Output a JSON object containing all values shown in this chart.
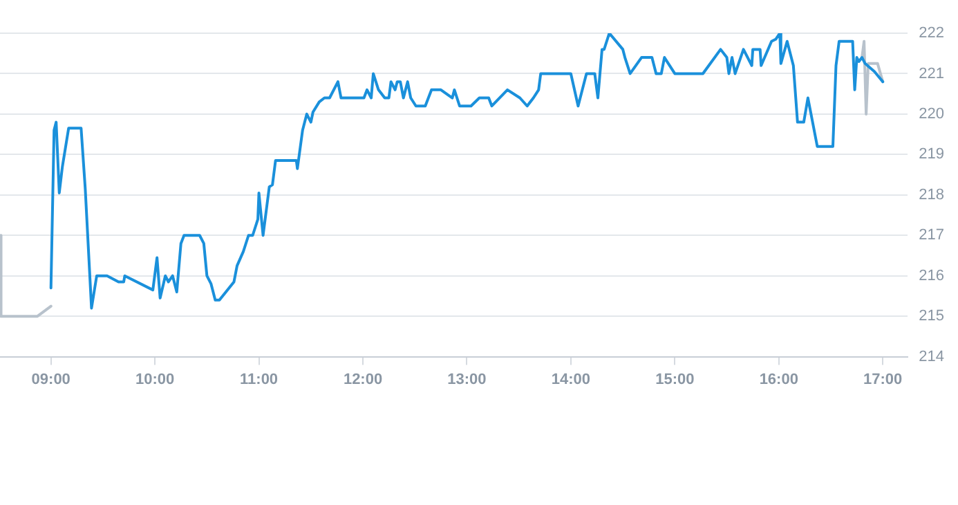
{
  "chart_data": {
    "type": "line",
    "xlim": [
      8.51,
      17.24
    ],
    "ylim": [
      214,
      222
    ],
    "xticks": [
      {
        "value": 9,
        "label": "09:00"
      },
      {
        "value": 10,
        "label": "10:00"
      },
      {
        "value": 11,
        "label": "11:00"
      },
      {
        "value": 12,
        "label": "12:00"
      },
      {
        "value": 13,
        "label": "13:00"
      },
      {
        "value": 14,
        "label": "14:00"
      },
      {
        "value": 15,
        "label": "15:00"
      },
      {
        "value": 16,
        "label": "16:00"
      },
      {
        "value": 17,
        "label": "17:00"
      }
    ],
    "yticks": [
      214,
      215,
      216,
      217,
      218,
      219,
      220,
      221,
      222
    ],
    "grid": "y",
    "marker": "none",
    "line_style": "solid",
    "legend": false,
    "series": [
      {
        "color": "#b8c2cc",
        "x": [
          8.51,
          8.52,
          8.87,
          9.0
        ],
        "values": [
          217.0,
          215.0,
          215.0,
          215.25
        ]
      },
      {
        "color": "#1a90db",
        "x": [
          9.0,
          9.03,
          9.05,
          9.08,
          9.11,
          9.17,
          9.29,
          9.33,
          9.39,
          9.44,
          9.54,
          9.65,
          9.7,
          9.71,
          9.98,
          10.02,
          10.05,
          10.1,
          10.13,
          10.17,
          10.21,
          10.25,
          10.28,
          10.43,
          10.47,
          10.5,
          10.54,
          10.58,
          10.62,
          10.76,
          10.79,
          10.85,
          10.9,
          10.94,
          10.99,
          11.0,
          11.04,
          11.1,
          11.13,
          11.16,
          11.36,
          11.37,
          11.42,
          11.46,
          11.5,
          11.52,
          11.58,
          11.63,
          11.68,
          11.76,
          11.79,
          12.01,
          12.04,
          12.08,
          12.1,
          12.15,
          12.21,
          12.25,
          12.27,
          12.31,
          12.33,
          12.36,
          12.39,
          12.43,
          12.46,
          12.51,
          12.6,
          12.66,
          12.75,
          12.86,
          12.88,
          12.93,
          13.04,
          13.12,
          13.21,
          13.24,
          13.39,
          13.51,
          13.58,
          13.64,
          13.69,
          13.71,
          14.0,
          14.07,
          14.15,
          14.23,
          14.26,
          14.28,
          14.3,
          14.32,
          14.37,
          14.5,
          14.52,
          14.57,
          14.68,
          14.78,
          14.82,
          14.87,
          14.9,
          15.0,
          15.27,
          15.44,
          15.5,
          15.52,
          15.55,
          15.58,
          15.66,
          15.74,
          15.75,
          15.82,
          15.83,
          15.93,
          15.97,
          16.01,
          16.02,
          16.08,
          16.14,
          16.18,
          16.24,
          16.28,
          16.37,
          16.52,
          16.55,
          16.58,
          16.71,
          16.73,
          16.75,
          16.77,
          16.8,
          16.83,
          16.92,
          17.0
        ],
        "values": [
          215.7,
          219.6,
          219.8,
          218.05,
          218.7,
          219.65,
          219.65,
          218.15,
          215.2,
          216.0,
          216.0,
          215.85,
          215.85,
          216.0,
          215.65,
          216.45,
          215.45,
          216.0,
          215.85,
          216.0,
          215.6,
          216.8,
          217.0,
          217.0,
          216.8,
          216.0,
          215.8,
          215.4,
          215.4,
          215.85,
          216.25,
          216.6,
          217.0,
          217.0,
          217.4,
          218.05,
          217.0,
          218.2,
          218.25,
          218.85,
          218.85,
          218.65,
          219.6,
          220.0,
          219.8,
          220.05,
          220.3,
          220.4,
          220.4,
          220.8,
          220.4,
          220.4,
          220.6,
          220.4,
          221.0,
          220.6,
          220.4,
          220.4,
          220.8,
          220.6,
          220.8,
          220.8,
          220.4,
          220.8,
          220.4,
          220.2,
          220.2,
          220.6,
          220.6,
          220.4,
          220.6,
          220.2,
          220.2,
          220.4,
          220.4,
          220.2,
          220.6,
          220.4,
          220.2,
          220.4,
          220.6,
          221.0,
          221.0,
          220.2,
          221.0,
          221.0,
          220.4,
          221.0,
          221.6,
          221.6,
          222.0,
          221.6,
          221.4,
          221.0,
          221.4,
          221.4,
          221.0,
          221.0,
          221.4,
          221.0,
          221.0,
          221.6,
          221.4,
          221.0,
          221.4,
          221.0,
          221.6,
          221.2,
          221.6,
          221.6,
          221.2,
          221.8,
          221.85,
          222.0,
          221.25,
          221.8,
          221.2,
          219.8,
          219.8,
          220.4,
          219.2,
          219.2,
          221.2,
          221.8,
          221.8,
          220.6,
          221.4,
          221.3,
          221.4,
          221.25,
          221.05,
          220.8
        ]
      },
      {
        "color": "#b8c2cc",
        "x": [
          16.8,
          16.82,
          16.84,
          16.86,
          16.95,
          17.0
        ],
        "values": [
          221.4,
          221.8,
          220.0,
          221.25,
          221.25,
          220.8
        ]
      }
    ]
  }
}
